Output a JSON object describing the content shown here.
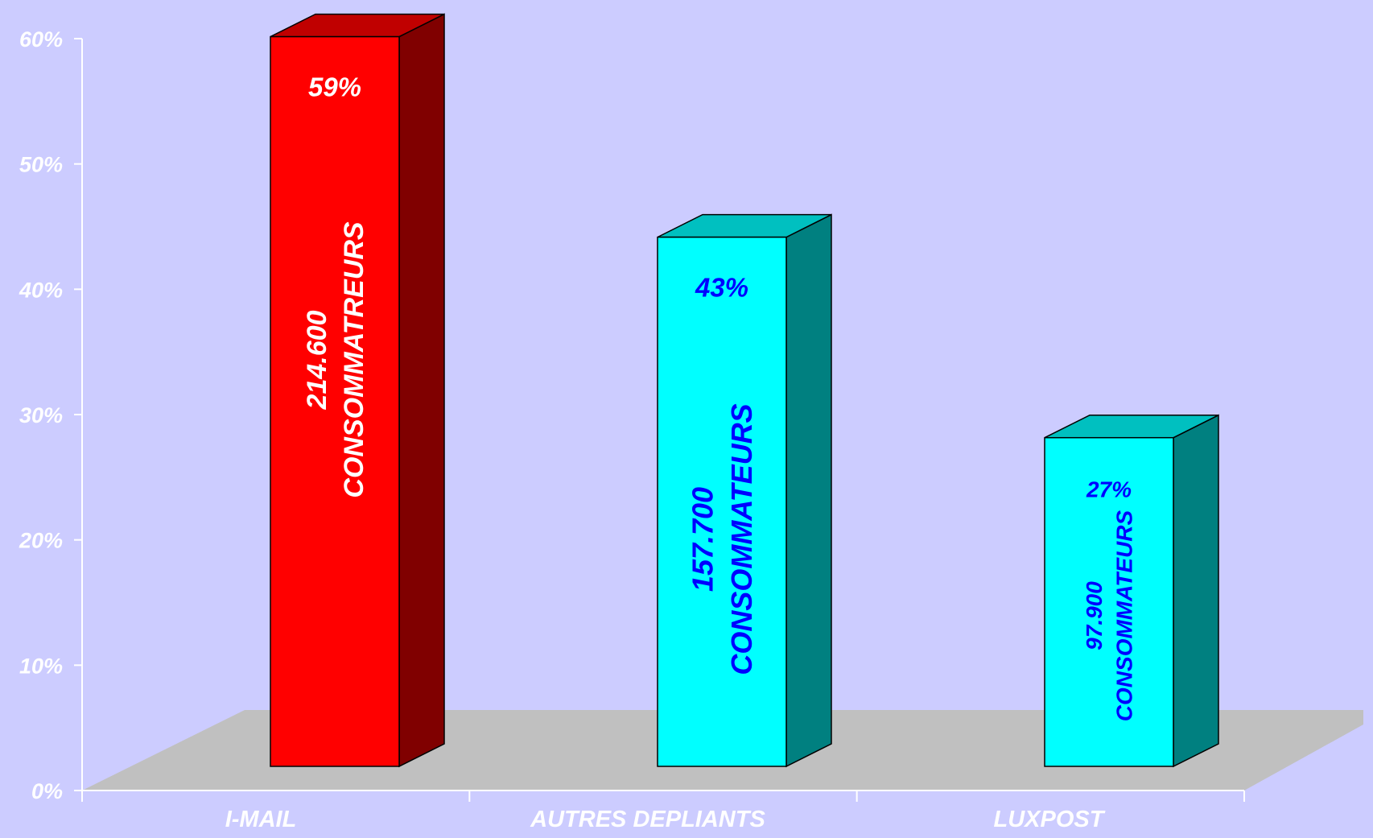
{
  "chart_data": {
    "type": "bar",
    "style": "3d",
    "categories": [
      "I-MAIL",
      "AUTRES DEPLIANTS",
      "LUXPOST"
    ],
    "values": [
      59,
      43,
      27
    ],
    "value_labels": [
      "59%",
      "43%",
      "27%"
    ],
    "count_labels": [
      [
        "214.600",
        "CONSOMMATREURS"
      ],
      [
        "157.700",
        "CONSOMMATEURS"
      ],
      [
        "97.900",
        "CONSOMMATEURS"
      ]
    ],
    "ylim": [
      0,
      60
    ],
    "yticks": [
      "0%",
      "10%",
      "20%",
      "30%",
      "40%",
      "50%",
      "60%"
    ],
    "grid": false,
    "legend": "none",
    "colors": {
      "background": "#ccccff",
      "floor": "#c0c0c0",
      "axis": "#ffffff",
      "tick_text": "#ffffff",
      "bars": [
        {
          "front": "#ff0000",
          "side": "#800000",
          "top": "#c00000",
          "text": "#ffffff"
        },
        {
          "front": "#00ffff",
          "side": "#008080",
          "top": "#00c0c0",
          "text": "#0000ff"
        },
        {
          "front": "#00ffff",
          "side": "#008080",
          "top": "#00c0c0",
          "text": "#0000ff"
        }
      ]
    }
  }
}
